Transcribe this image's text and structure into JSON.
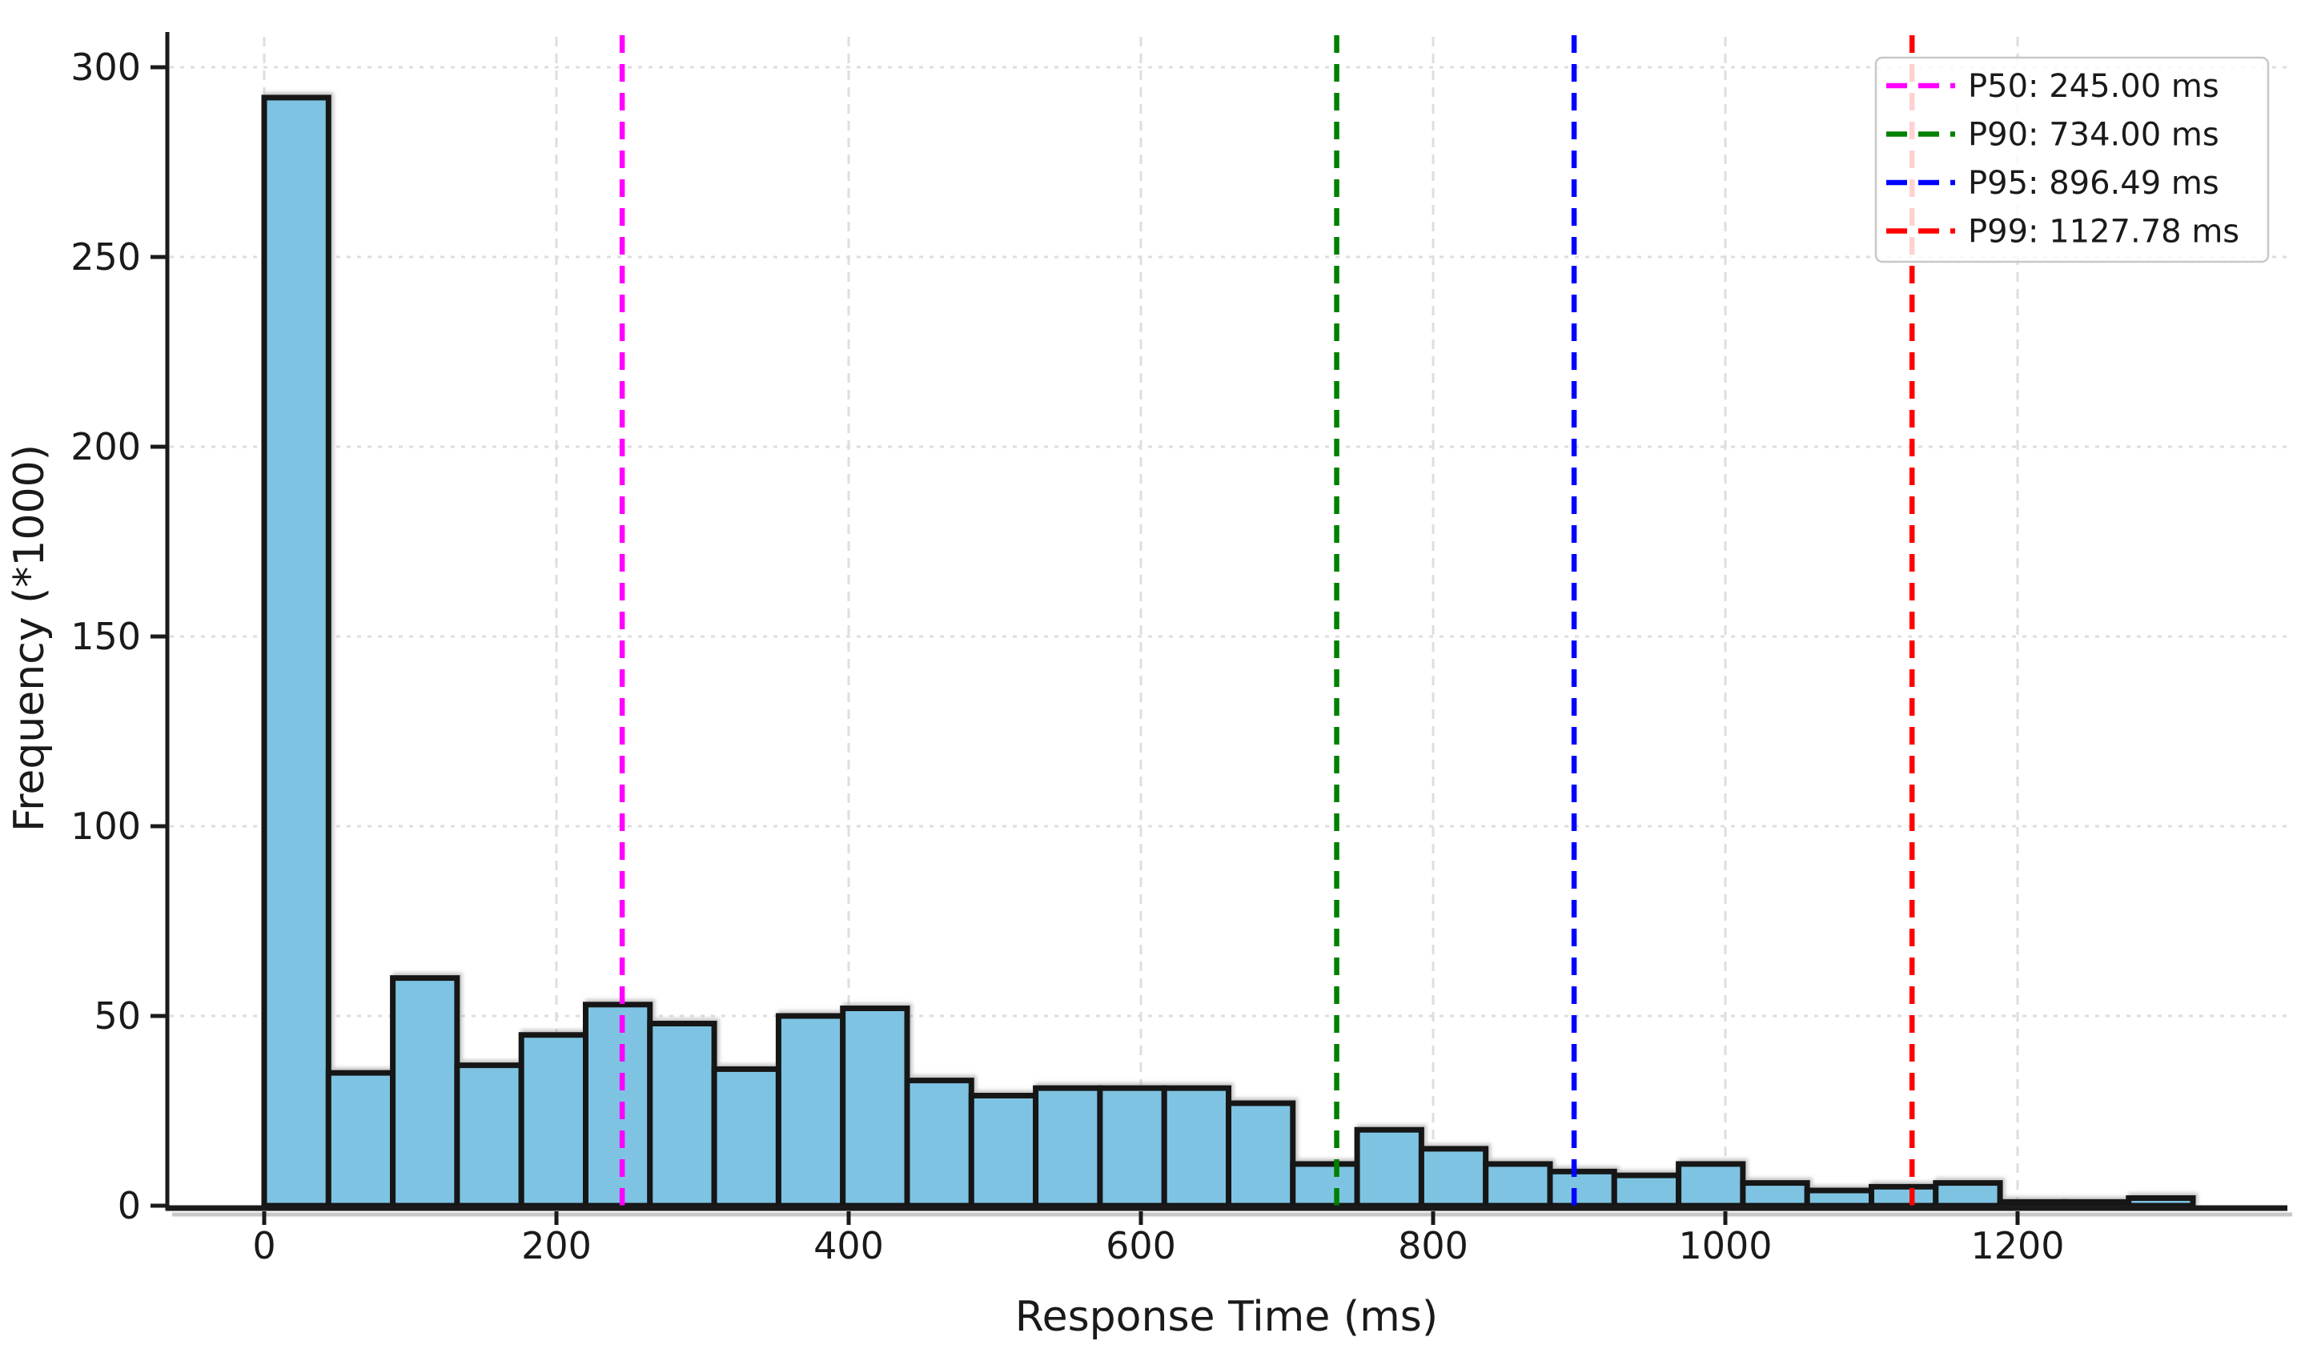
{
  "chart_data": {
    "type": "bar",
    "subtype": "histogram",
    "title": "",
    "xlabel": "Response Time (ms)",
    "ylabel": "Frequency (*1000)",
    "bin_start_ms": 0,
    "bin_width_ms": 44,
    "bin_count": 30,
    "values_thousands": [
      292,
      35,
      60,
      37,
      45,
      53,
      48,
      36,
      50,
      52,
      33,
      29,
      31,
      31,
      31,
      27,
      11,
      20,
      15,
      11,
      9,
      8,
      11,
      6,
      4,
      5,
      6,
      1,
      1,
      2
    ],
    "xticks": [
      0,
      200,
      400,
      600,
      800,
      1000,
      1200
    ],
    "yticks": [
      0,
      50,
      100,
      150,
      200,
      250,
      300
    ],
    "xlim": [
      -70,
      1385
    ],
    "ylim": [
      0,
      310
    ],
    "grid": true,
    "legend_position": "upper right",
    "colors": {
      "bar_fill": "#7EC4E2",
      "bar_edge": "#141414",
      "grid": "#dedede",
      "spine": "#1a1a1a",
      "spine_shadow": "#bbbbbb",
      "legend_border": "#c8c8c8",
      "legend_background": "#ffffff"
    },
    "percentiles": [
      {
        "id": "p50",
        "label": "P50: 245.00 ms",
        "value_ms": 245.0,
        "color": "#FF00FF"
      },
      {
        "id": "p90",
        "label": "P90: 734.00 ms",
        "value_ms": 734.0,
        "color": "#008000"
      },
      {
        "id": "p95",
        "label": "P95: 896.49 ms",
        "value_ms": 896.49,
        "color": "#0000FF"
      },
      {
        "id": "p99",
        "label": "P99: 1127.78 ms",
        "value_ms": 1127.78,
        "color": "#FF0000"
      }
    ]
  }
}
